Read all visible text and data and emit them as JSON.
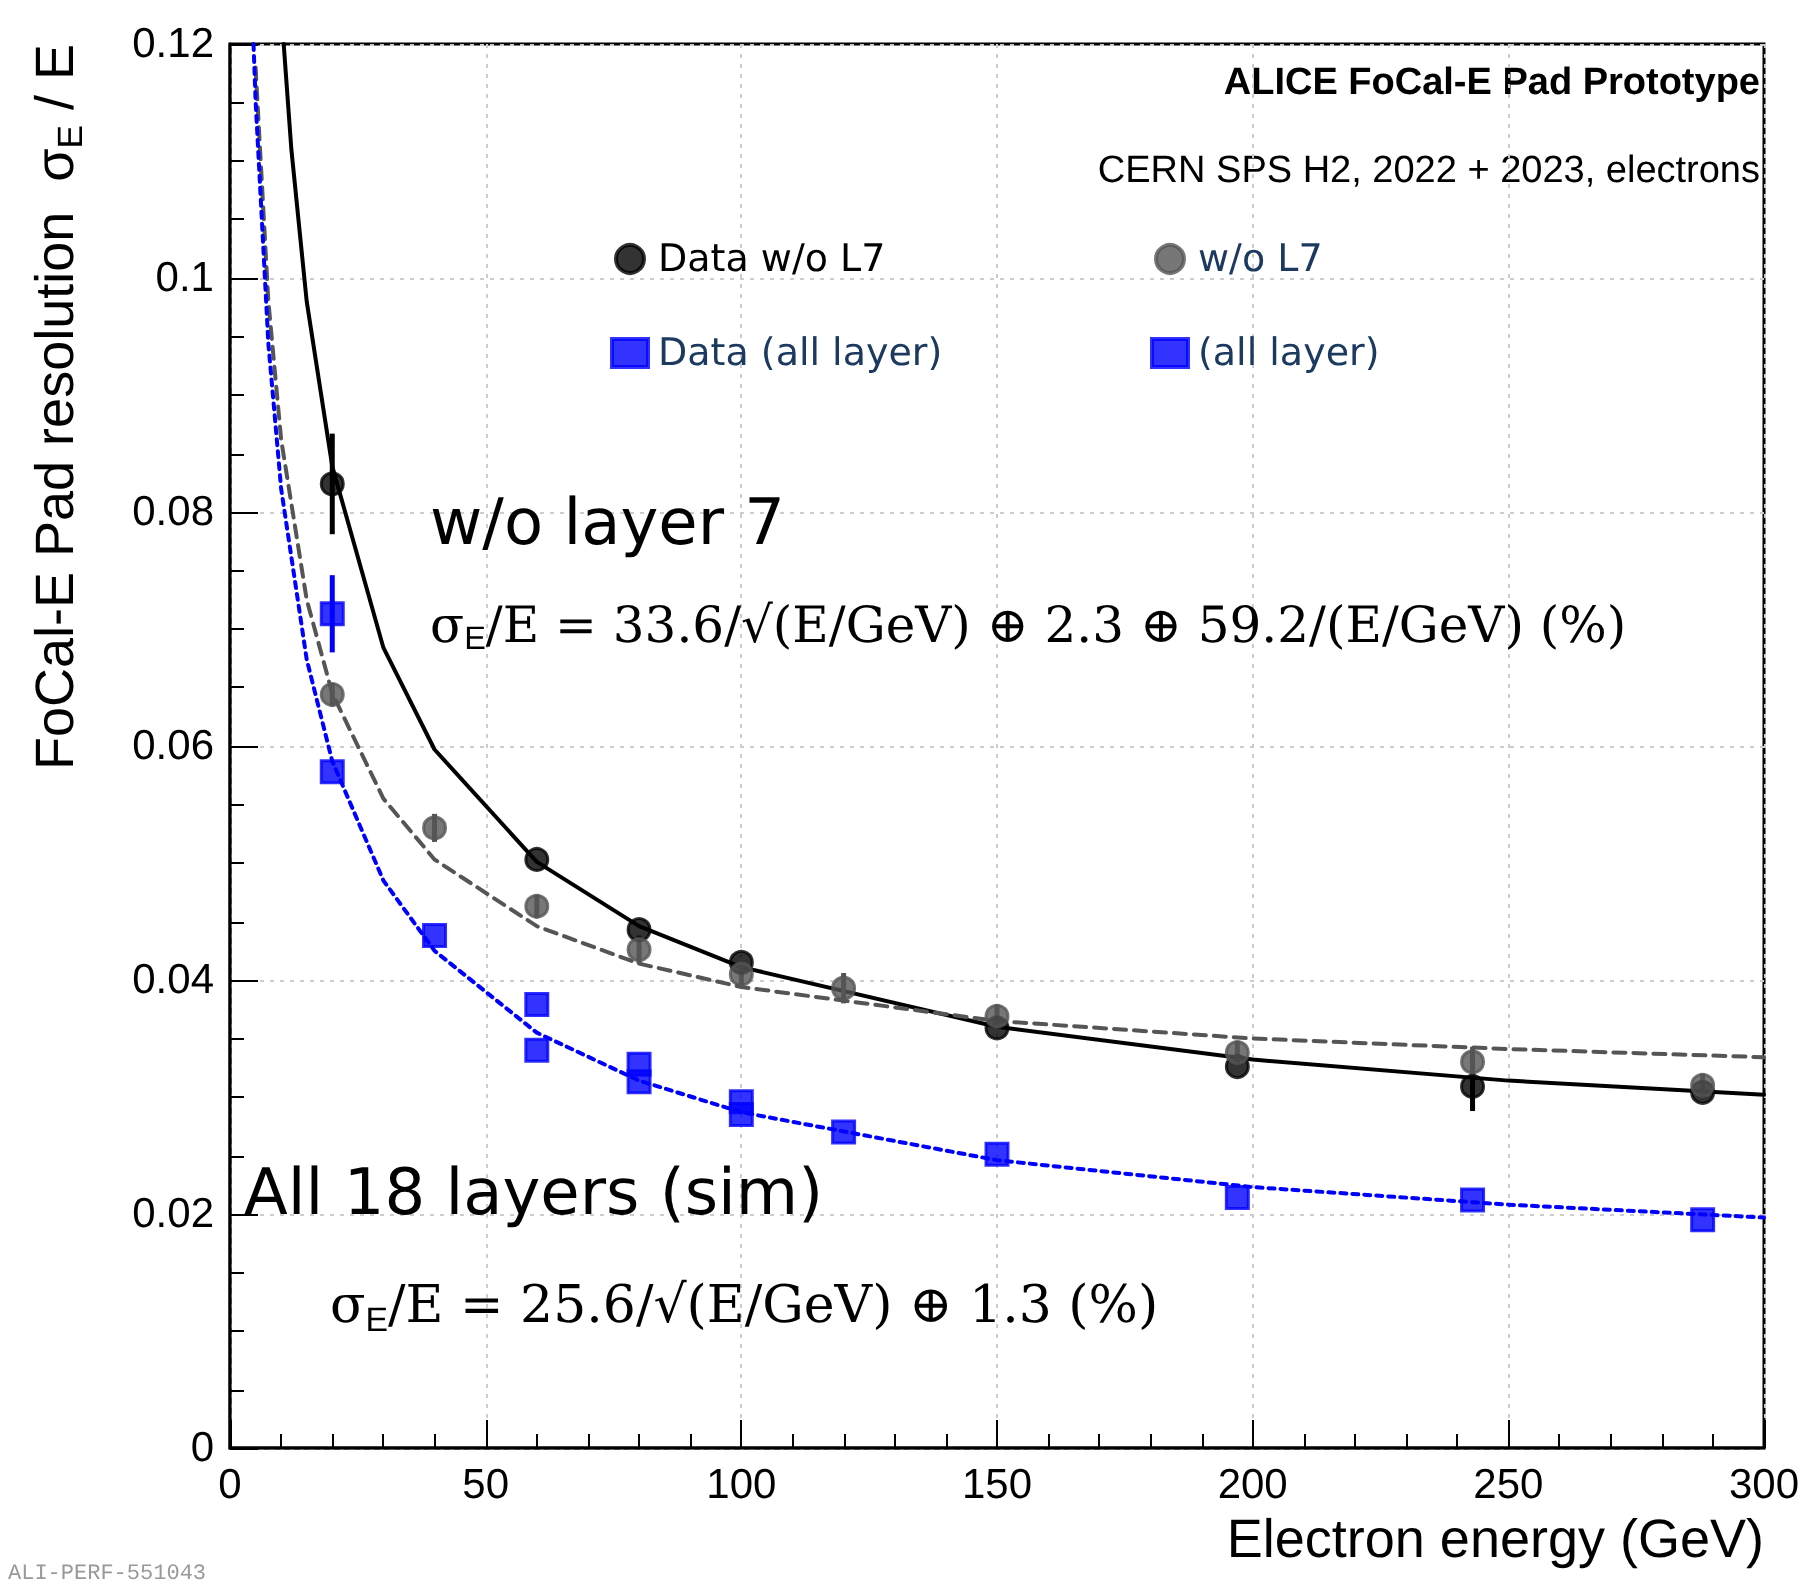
{
  "chart_data": {
    "type": "scatter",
    "title": "ALICE FoCal-E Pad Prototype",
    "subtitle": "CERN SPS H2, 2022 + 2023, electrons",
    "xlabel": "Electron energy (GeV)",
    "ylabel": "FoCal-E Pad resolution  σ$_{E}$ / E",
    "annotations": [
      "w/o layer 7",
      "σ$_{E}$/E = 33.6/√(E/GeV) ⊕ 2.3 ⊕ 59.2/(E/GeV) (%)",
      "All 18 layers (sim)",
      "σ$_{E}$/E = 25.6/√(E/GeV) ⊕ 1.3 (%)",
      "ALI-PERF-551043"
    ],
    "xlim": [
      0,
      300
    ],
    "xticks": [
      0,
      50,
      100,
      150,
      200,
      250,
      300
    ],
    "ylim": [
      0,
      0.12
    ],
    "yticks": [
      0,
      0.02,
      0.04,
      0.06,
      0.08,
      0.1,
      0.12
    ],
    "grid": true,
    "legend": "top right",
    "series": [
      {
        "name": "Data w/o L7",
        "color": "#000000",
        "marker": "circle",
        "x": [
          20,
          60,
          80,
          100,
          150,
          197,
          243,
          288
        ],
        "values": [
          0.0824,
          0.0503,
          0.0443,
          0.0415,
          0.0359,
          0.0326,
          0.0309,
          0.0304
        ],
        "errors": [
          0.0043,
          null,
          null,
          null,
          null,
          null,
          0.0021,
          null
        ]
      },
      {
        "name": "w/o L7",
        "color": "#555555",
        "marker": "circle",
        "x": [
          20,
          40,
          60,
          80,
          100,
          120,
          150,
          197,
          243,
          288
        ],
        "values": [
          0.0644,
          0.053,
          0.0463,
          0.0426,
          0.0405,
          0.0393,
          0.0369,
          0.0338,
          0.033,
          0.031
        ],
        "errors": [
          0.001,
          0.0012,
          0.001,
          0.0012,
          0.001,
          0.0013,
          0.001,
          0.001,
          0.0013,
          0.001
        ]
      },
      {
        "name": "Data (all layer)",
        "color": "#0000ff",
        "marker": "square",
        "x": [
          20,
          60,
          80,
          100
        ],
        "values": [
          0.0713,
          0.0379,
          0.0328,
          0.0296
        ],
        "errors": [
          0.0033,
          null,
          null,
          null
        ]
      },
      {
        "name": "(all layer)",
        "color": "#0000ff",
        "marker": "square",
        "x": [
          20,
          40,
          60,
          80,
          100,
          120,
          150,
          197,
          243,
          288
        ],
        "values": [
          0.0578,
          0.0438,
          0.034,
          0.0313,
          0.0285,
          0.027,
          0.0251,
          0.0214,
          0.0212,
          0.0195
        ]
      },
      {
        "type": "line",
        "color": "#000000",
        "line_style": "solid",
        "marker": "none",
        "x": [
          10.5,
          12,
          15,
          20,
          30,
          40,
          60,
          80,
          100,
          150,
          200,
          250,
          300
        ],
        "values": [
          0.12,
          0.111,
          0.098,
          0.0839,
          0.0684,
          0.0597,
          0.0501,
          0.0446,
          0.0411,
          0.036,
          0.0332,
          0.0314,
          0.0302
        ]
      },
      {
        "type": "line",
        "color": "#555555",
        "line_style": "dashed",
        "marker": "none",
        "x": [
          5,
          7.5,
          10,
          15,
          20,
          30,
          40,
          60,
          80,
          100,
          150,
          200,
          250,
          300
        ],
        "values": [
          0.118,
          0.098,
          0.0862,
          0.0725,
          0.0645,
          0.0555,
          0.0503,
          0.0446,
          0.0414,
          0.0394,
          0.0365,
          0.035,
          0.0341,
          0.0334
        ]
      },
      {
        "type": "line",
        "color": "#0000ff",
        "line_style": "dotted",
        "marker": "none",
        "x": [
          4.6,
          5,
          7.5,
          10,
          15,
          20,
          30,
          40,
          60,
          80,
          100,
          150,
          200,
          250,
          300
        ],
        "values": [
          0.12,
          0.1152,
          0.0944,
          0.082,
          0.0674,
          0.0587,
          0.0485,
          0.0425,
          0.0355,
          0.0314,
          0.0287,
          0.0246,
          0.0223,
          0.0208,
          0.0197
        ]
      }
    ]
  }
}
